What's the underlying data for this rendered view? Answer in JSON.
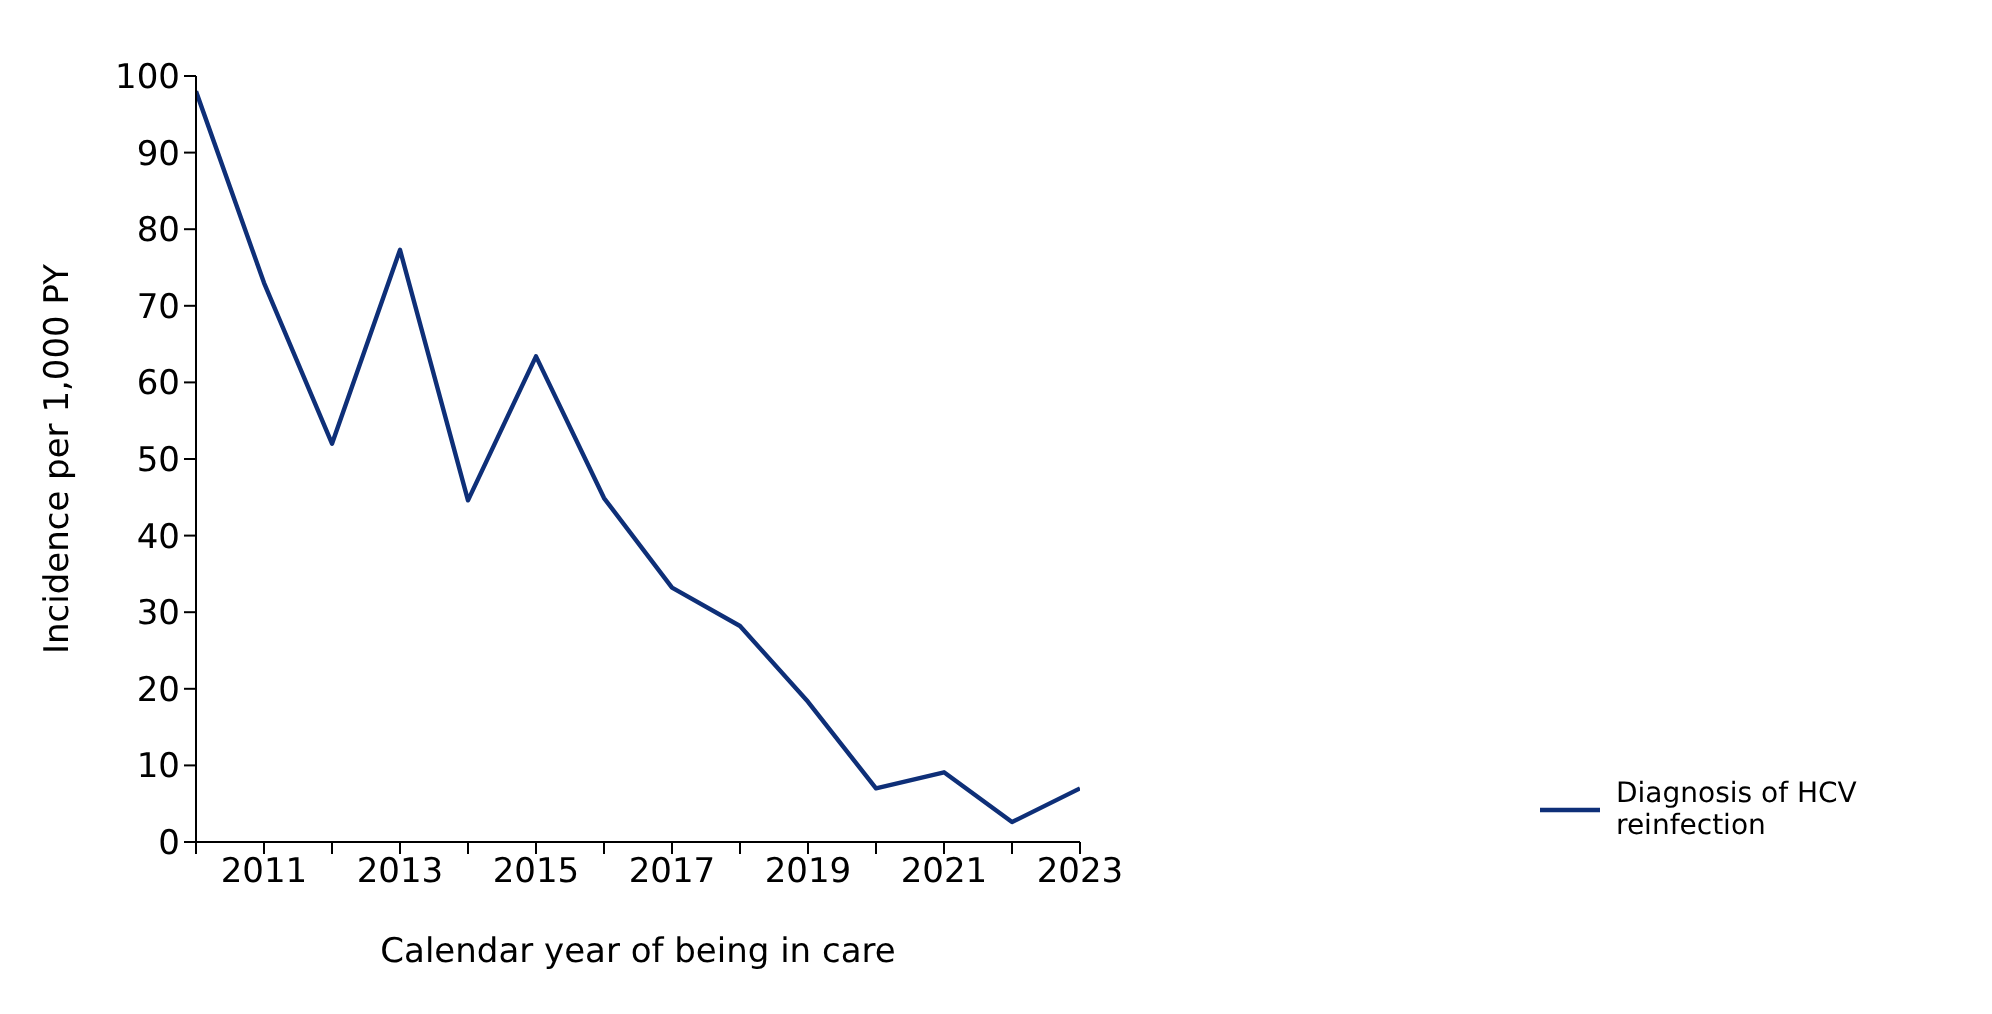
{
  "chart_data": {
    "type": "line",
    "xlabel": "Calendar year of being in care",
    "ylabel": "Incidence per 1,000 PY",
    "x": [
      2010,
      2011,
      2012,
      2013,
      2014,
      2015,
      2016,
      2017,
      2018,
      2019,
      2020,
      2021,
      2022,
      2023
    ],
    "series": [
      {
        "name": "Diagnosis of HCV reinfection",
        "color": "#0e2f78",
        "values": [
          98,
          73,
          52,
          77.3,
          44.6,
          63.4,
          44.9,
          33.2,
          28.2,
          18.3,
          7,
          9.1,
          2.6,
          7
        ]
      }
    ],
    "xlim": [
      2010,
      2023
    ],
    "xticks": [
      {
        "value": 2010,
        "label": null
      },
      2011,
      {
        "value": 2012,
        "label": null
      },
      2013,
      {
        "value": 2014,
        "label": null
      },
      2015,
      {
        "value": 2016,
        "label": null
      },
      2017,
      {
        "value": 2018,
        "label": null
      },
      2019,
      {
        "value": 2020,
        "label": null
      },
      2021,
      {
        "value": 2022,
        "label": null
      },
      2023
    ],
    "ylim": [
      0,
      100
    ],
    "yticks": [
      0,
      10,
      20,
      30,
      40,
      50,
      60,
      70,
      80,
      90,
      100
    ],
    "grid": false,
    "legend": "right",
    "marker": "none",
    "line_style": "solid"
  }
}
